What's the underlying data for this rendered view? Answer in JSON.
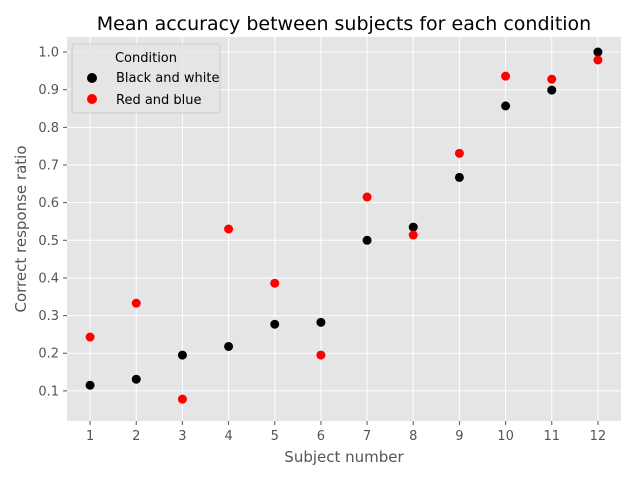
{
  "chart_data": {
    "type": "scatter",
    "title": "Mean accuracy between subjects for each condition",
    "xlabel": "Subject number",
    "ylabel": "Correct response ratio",
    "x": [
      1,
      2,
      3,
      4,
      5,
      6,
      7,
      8,
      9,
      10,
      11,
      12
    ],
    "xlim": [
      0.5,
      12.5
    ],
    "ylim": [
      0.02,
      1.04
    ],
    "yticks": [
      0.1,
      0.2,
      0.3,
      0.4,
      0.5,
      0.6,
      0.7,
      0.8,
      0.9,
      1.0
    ],
    "ytick_labels": [
      "0.1",
      "0.2",
      "0.3",
      "0.4",
      "0.5",
      "0.6",
      "0.7",
      "0.8",
      "0.9",
      "1.0"
    ],
    "xtick_labels": [
      "1",
      "2",
      "3",
      "4",
      "5",
      "6",
      "7",
      "8",
      "9",
      "10",
      "11",
      "12"
    ],
    "grid": true,
    "legend_title": "Condition",
    "legend_placement": "top-left",
    "series": [
      {
        "name": "Black and white",
        "color": "#000000",
        "values": [
          0.115,
          0.131,
          0.195,
          0.218,
          0.277,
          0.282,
          0.5,
          0.535,
          0.667,
          0.857,
          0.899,
          1.0
        ]
      },
      {
        "name": "Red and blue",
        "color": "#ff0000",
        "values": [
          0.243,
          0.333,
          0.078,
          0.53,
          0.386,
          0.195,
          0.615,
          0.514,
          0.731,
          0.936,
          0.928,
          0.979
        ]
      }
    ]
  }
}
